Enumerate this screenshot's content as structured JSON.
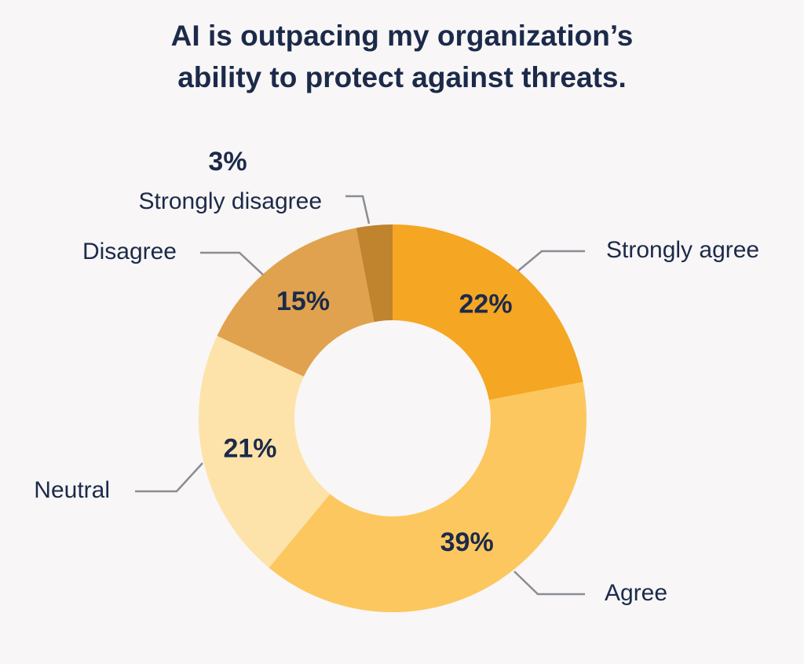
{
  "chart_data": {
    "type": "donut",
    "title": [
      "AI is outpacing my organization’s",
      "ability to protect against threats."
    ],
    "categories": [
      "Strongly agree",
      "Agree",
      "Neutral",
      "Disagree",
      "Strongly disagree"
    ],
    "values": [
      22,
      39,
      21,
      15,
      3
    ],
    "value_labels": [
      "22%",
      "39%",
      "21%",
      "15%",
      "3%"
    ],
    "colors": [
      "#f5a623",
      "#fcc75e",
      "#fde3aa",
      "#e0a24e",
      "#c0832e"
    ]
  }
}
